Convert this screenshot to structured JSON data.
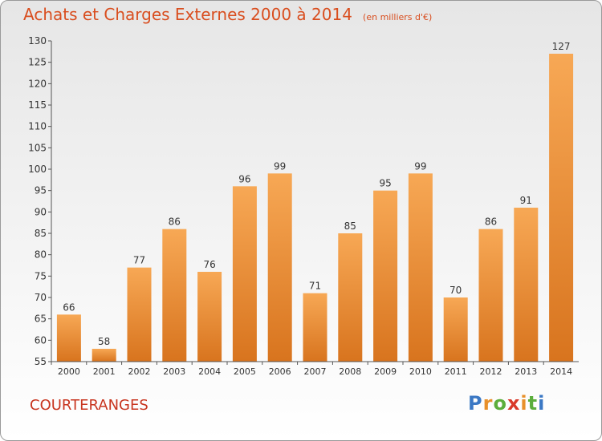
{
  "header": {
    "title": "Achats et Charges Externes 2000 à 2014",
    "subtitle": "(en milliers d'€)"
  },
  "town": "COURTERANGES",
  "logo": {
    "text": "Proxiti"
  },
  "colors": {
    "title": "#d94e1f",
    "bar_top": "#f7a855",
    "bar_bottom": "#d8741e",
    "town": "#c8351f"
  },
  "chart_data": {
    "type": "bar",
    "title": "Achats et Charges Externes 2000 à 2014",
    "subtitle": "(en milliers d'€)",
    "categories": [
      "2000",
      "2001",
      "2002",
      "2003",
      "2004",
      "2005",
      "2006",
      "2007",
      "2008",
      "2009",
      "2010",
      "2011",
      "2012",
      "2013",
      "2014"
    ],
    "values": [
      66,
      58,
      77,
      86,
      76,
      96,
      99,
      71,
      85,
      95,
      99,
      70,
      86,
      91,
      127
    ],
    "ylim": [
      55,
      130
    ],
    "yticks": [
      55,
      60,
      65,
      70,
      75,
      80,
      85,
      90,
      95,
      100,
      105,
      110,
      115,
      120,
      125,
      130
    ],
    "grid": false,
    "xlabel": "",
    "ylabel": ""
  }
}
